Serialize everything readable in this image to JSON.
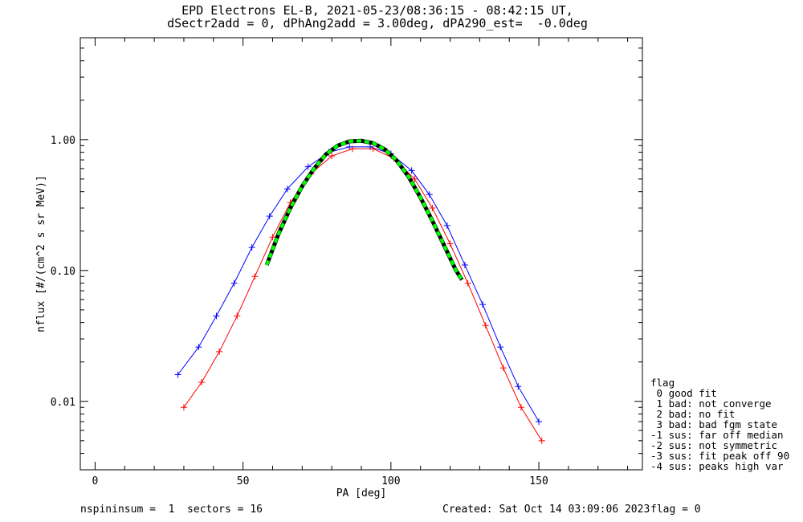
{
  "title": {
    "line1": "EPD Electrons EL-B, 2021-05-23/08:36:15 - 08:42:15 UT,",
    "line2": "dSectr2add = 0, dPhAng2add = 3.00deg, dPA290_est=  -0.0deg"
  },
  "footer": {
    "left": "nspininsum =  1  sectors = 16",
    "created": "Created: Sat Oct 14 03:09:06 2023",
    "flag": "flag = 0"
  },
  "legend": {
    "title": "flag",
    "items": [
      " 0 good fit",
      " 1 bad: not converge",
      " 2 bad: no fit",
      " 3 bad: bad fgm state",
      "-1 sus: far off median",
      "-2 sus: not symmetric",
      "-3 sus: fit peak off 90",
      "-4 sus: peaks high var"
    ]
  },
  "chart_data": {
    "type": "line",
    "title": "EPD Electrons EL-B, 2021-05-23/08:36:15 - 08:42:15 UT, dSectr2add = 0, dPhAng2add = 3.00deg, dPA290_est=  -0.0deg",
    "xlabel": "PA [deg]",
    "ylabel": "nflux [#/(cm^2 s sr MeV)]",
    "xlim": [
      -5,
      185
    ],
    "ylim": [
      0.003,
      6.0
    ],
    "yscale": "log",
    "xticks": [
      0,
      50,
      100,
      150
    ],
    "xtick_labels": [
      "0",
      "50",
      "100",
      "150"
    ],
    "yticks": [
      0.01,
      0.1,
      1.0
    ],
    "ytick_labels": [
      "0.01",
      "0.10",
      "1.00"
    ],
    "colors": {
      "series_a": "#ff0000",
      "series_b": "#0000ff",
      "fit": "#00ff00",
      "fit_outline": "#000000"
    },
    "series": [
      {
        "color": "#0000ff",
        "marker": "+",
        "x": [
          28,
          35,
          41,
          47,
          53,
          59,
          65,
          72,
          79,
          86,
          93,
          100,
          107,
          113,
          119,
          125,
          131,
          137,
          143,
          150
        ],
        "y": [
          0.016,
          0.026,
          0.045,
          0.08,
          0.15,
          0.26,
          0.42,
          0.62,
          0.8,
          0.88,
          0.88,
          0.78,
          0.58,
          0.38,
          0.22,
          0.11,
          0.055,
          0.026,
          0.013,
          0.007
        ]
      },
      {
        "color": "#ff0000",
        "marker": "+",
        "x": [
          30,
          36,
          42,
          48,
          54,
          60,
          66,
          73,
          80,
          87,
          94,
          101,
          108,
          114,
          120,
          126,
          132,
          138,
          144,
          151
        ],
        "y": [
          0.009,
          0.014,
          0.024,
          0.045,
          0.09,
          0.18,
          0.33,
          0.55,
          0.75,
          0.85,
          0.85,
          0.72,
          0.5,
          0.3,
          0.16,
          0.08,
          0.038,
          0.018,
          0.009,
          0.005
        ]
      },
      {
        "color": "#00ff00",
        "style": "dashed",
        "x": [
          58,
          62,
          66,
          70,
          74,
          78,
          82,
          86,
          90,
          94,
          98,
          102,
          106,
          110,
          114,
          118,
          122,
          124
        ],
        "y": [
          0.11,
          0.19,
          0.3,
          0.44,
          0.6,
          0.77,
          0.9,
          0.97,
          0.98,
          0.94,
          0.84,
          0.69,
          0.52,
          0.36,
          0.24,
          0.155,
          0.1,
          0.085
        ]
      }
    ]
  }
}
